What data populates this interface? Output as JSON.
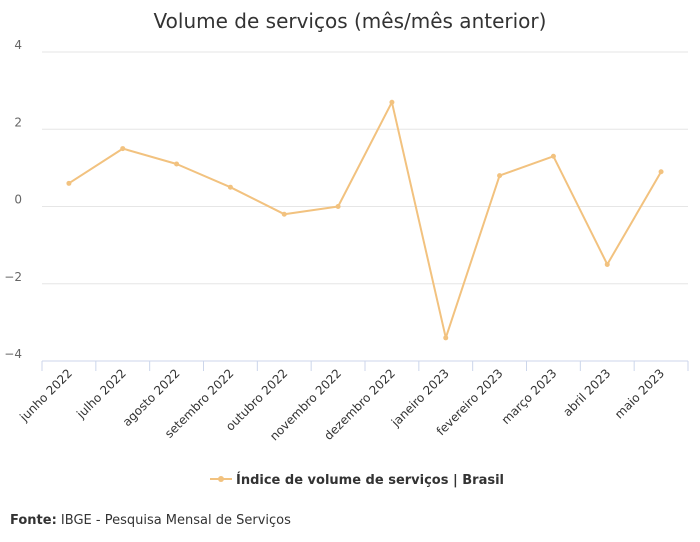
{
  "chart_data": {
    "type": "line",
    "title": "Volume de serviços (mês/mês anterior)",
    "xlabel": "",
    "ylabel": "",
    "categories": [
      "junho 2022",
      "julho 2022",
      "agosto 2022",
      "setembro 2022",
      "outubro 2022",
      "novembro 2022",
      "dezembro 2022",
      "janeiro 2023",
      "fevereiro 2023",
      "março 2023",
      "abril 2023",
      "maio 2023"
    ],
    "series": [
      {
        "name": "Índice de volume de serviços | Brasil",
        "color": "#f2c27f",
        "values": [
          0.6,
          1.5,
          1.1,
          0.5,
          -0.2,
          0.0,
          2.7,
          -3.4,
          0.8,
          1.3,
          -1.5,
          0.9
        ]
      }
    ],
    "ylim": [
      -4,
      4
    ],
    "yticks": [
      4,
      2,
      0,
      -2,
      -4
    ],
    "ytick_labels": [
      "4",
      "2",
      "0",
      "−2",
      "−4"
    ],
    "grid": true,
    "legend_position": "bottom"
  },
  "source": {
    "label": "Fonte:",
    "text": "IBGE - Pesquisa Mensal de Serviços"
  }
}
